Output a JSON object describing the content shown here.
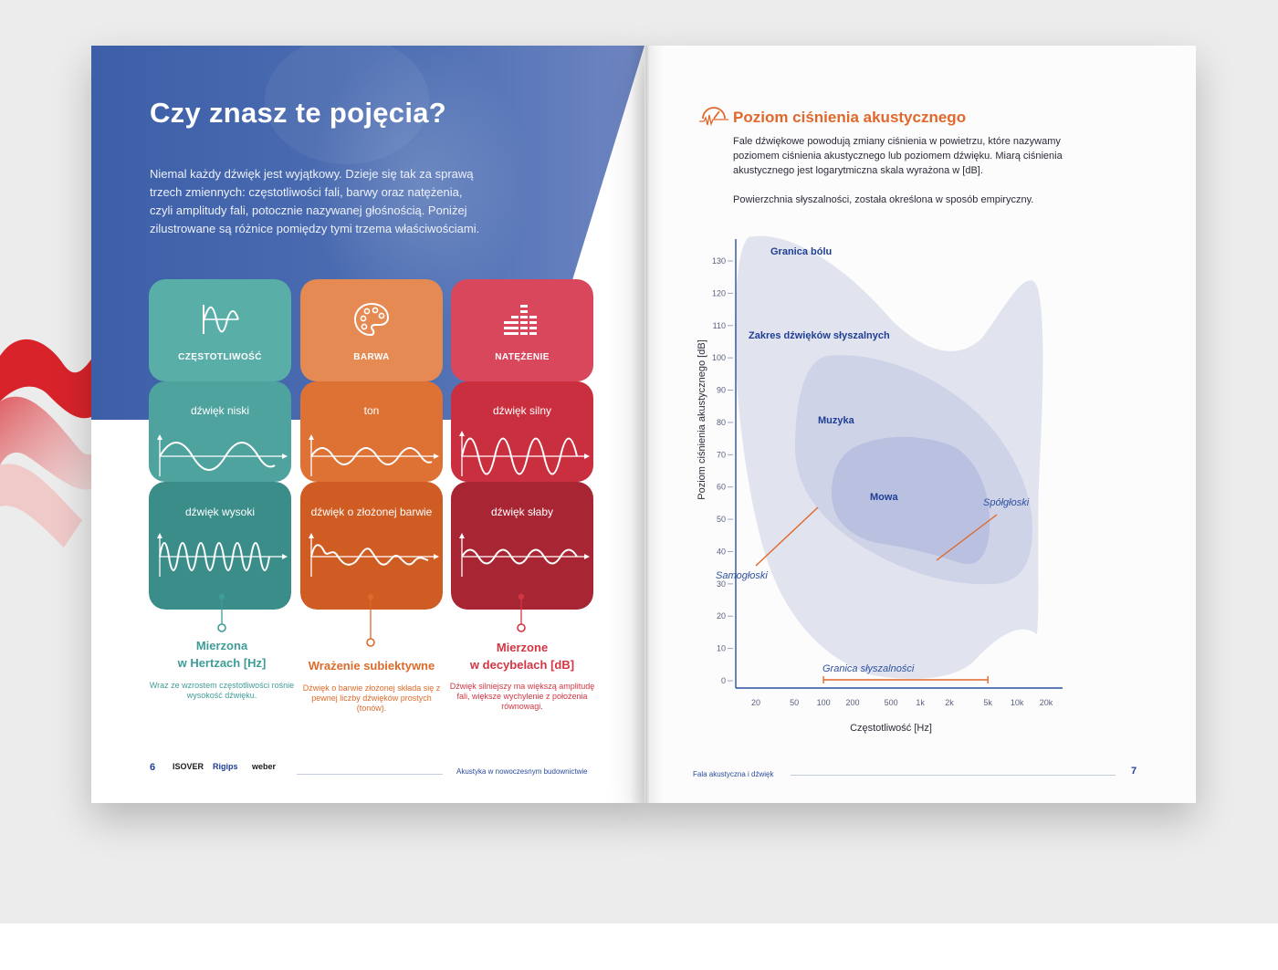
{
  "left_page": {
    "title": "Czy znasz te pojęcia?",
    "intro": "Niemal każdy dźwięk jest wyjątkowy. Dzieje się tak za sprawą trzech zmiennych: częstotliwości fali, barwy oraz natężenia, czyli amplitudy fali, potocznie nazywanej głośnością. Poniżej zilustrowane są różnice pomiędzy tymi trzema właściwościami.",
    "cards": [
      {
        "icon": "frequency-wave-icon",
        "title": "CZĘSTOTLIWOŚĆ",
        "label1": "dźwięk niski",
        "label2": "dźwięk wysoki",
        "measure_line1": "Mierzona",
        "measure_line2": "w Hertzach [Hz]",
        "description": "Wraz ze wzrostem częstotliwości rośnie wysokość dźwięku.",
        "color_top": "#5aaea8",
        "color_mid": "#4fa39e",
        "color_low": "#3b8d8a",
        "text_color": "#3f9c97"
      },
      {
        "icon": "palette-icon",
        "title": "BARWA",
        "label1": "ton",
        "label2": "dźwięk o złożonej barwie",
        "measure_line1": "Wrażenie subiektywne",
        "measure_line2": "",
        "description": "Dźwięk o barwie złożonej składa się z pewnej liczby dźwięków prostych (tonów).",
        "color_top": "#e58a52",
        "color_mid": "#de7234",
        "color_low": "#cf5c22",
        "text_color": "#dd6a2a"
      },
      {
        "icon": "equalizer-icon",
        "title": "NATĘŻENIE",
        "label1": "dźwięk silny",
        "label2": "dźwięk słaby",
        "measure_line1": "Mierzone",
        "measure_line2": "w decybelach [dB]",
        "description": "Dźwięk silniejszy ma większą amplitudę fali, większe wychylenie z położenia równowagi.",
        "color_top": "#d9475c",
        "color_mid": "#c92f3f",
        "color_low": "#a82533",
        "text_color": "#d23643"
      }
    ],
    "footer": {
      "page_number": "6",
      "logos": [
        "ISOVER",
        "Rigips",
        "weber"
      ],
      "text": "Akustyka w nowoczesnym budownictwie"
    }
  },
  "right_page": {
    "title": "Poziom ciśnienia akustycznego",
    "title_icon": "sound-level-icon",
    "paragraph1": "Fale dźwiękowe powodują zmiany ciśnienia w powietrzu, które nazywamy poziomem ciśnienia akustycznego lub poziomem dźwięku. Miarą ciśnienia akustycznego jest logarytmiczna skala wyrażona w [dB].",
    "paragraph2": "Powierzchnia słyszalności, została określona w sposób empiryczny.",
    "footer": {
      "text": "Fala akustyczna i dźwięk",
      "page_number": "7"
    }
  },
  "chart_data": {
    "type": "area",
    "title": "",
    "xlabel": "Częstotliwość [Hz]",
    "ylabel": "Poziom ciśnienia akustycznego [dB]",
    "x_scale": "log",
    "x_ticks": [
      "20",
      "50",
      "100",
      "200",
      "500",
      "1k",
      "2k",
      "5k",
      "10k",
      "20k"
    ],
    "x_tick_values": [
      20,
      50,
      100,
      200,
      500,
      1000,
      2000,
      5000,
      10000,
      20000
    ],
    "y_ticks": [
      "130",
      "120",
      "110",
      "100",
      "90",
      "80",
      "70",
      "60",
      "50",
      "40",
      "30",
      "20",
      "10",
      "0"
    ],
    "y_tick_values": [
      130,
      120,
      110,
      100,
      90,
      80,
      70,
      60,
      50,
      40,
      30,
      20,
      10,
      0
    ],
    "ylim": [
      0,
      130
    ],
    "regions": [
      {
        "name": "Zakres dźwięków słyszalnych",
        "color": "#e1e4ef"
      },
      {
        "name": "Muzyka",
        "color": "#cfd3e8"
      },
      {
        "name": "Mowa",
        "color": "#b9c0e0"
      }
    ],
    "labels": {
      "pain": "Granica bólu",
      "audible": "Zakres dźwięków słyszalnych",
      "music": "Muzyka",
      "speech": "Mowa",
      "consonants": "Spółgłoski",
      "vowels": "Samogłoski",
      "hearing_limit": "Granica słyszalności"
    },
    "hearing_limit_range_hz": [
      100,
      5000
    ],
    "colors": {
      "axis": "#2c4fa0",
      "accent": "#e0682c",
      "label": "#1f3f95"
    }
  }
}
